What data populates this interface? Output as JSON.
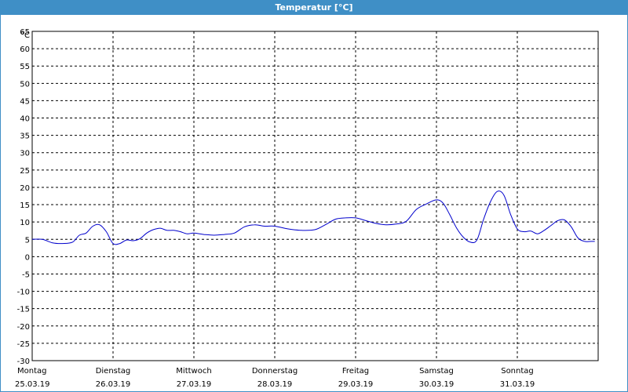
{
  "window": {
    "title": "Temperatur [°C]"
  },
  "chart_data": {
    "type": "line",
    "title": "Temperatur [°C]",
    "unit": "°C",
    "ylim": [
      -30,
      65
    ],
    "yticks": [
      65,
      60,
      55,
      50,
      45,
      40,
      35,
      30,
      25,
      20,
      15,
      10,
      5,
      0,
      -5,
      -10,
      -15,
      -20,
      -25,
      -30
    ],
    "grid": true,
    "xlim": [
      "25.03.19",
      "01.04.19"
    ],
    "days": [
      {
        "weekday": "Montag",
        "date": "25.03.19"
      },
      {
        "weekday": "Dienstag",
        "date": "26.03.19"
      },
      {
        "weekday": "Mittwoch",
        "date": "27.03.19"
      },
      {
        "weekday": "Donnerstag",
        "date": "28.03.19"
      },
      {
        "weekday": "Freitag",
        "date": "29.03.19"
      },
      {
        "weekday": "Samstag",
        "date": "30.03.19"
      },
      {
        "weekday": "Sonntag",
        "date": "31.03.19"
      }
    ],
    "line_color": "#0000cc",
    "series": [
      {
        "x": [
          "25.03.19 00:00",
          "25.03.19 03:00",
          "25.03.19 06:00",
          "25.03.19 09:00",
          "25.03.19 12:00",
          "25.03.19 14:00",
          "25.03.19 16:00",
          "25.03.19 18:00",
          "25.03.19 20:00",
          "25.03.19 22:00",
          "26.03.19 00:00",
          "26.03.19 02:00",
          "26.03.19 04:00",
          "26.03.19 06:00",
          "26.03.19 08:00",
          "26.03.19 10:00",
          "26.03.19 12:00",
          "26.03.19 14:00",
          "26.03.19 16:00",
          "26.03.19 18:00",
          "26.03.19 20:00",
          "26.03.19 22:00",
          "27.03.19 00:00",
          "27.03.19 03:00",
          "27.03.19 06:00",
          "27.03.19 09:00",
          "27.03.19 12:00",
          "27.03.19 15:00",
          "27.03.19 18:00",
          "27.03.19 21:00",
          "28.03.19 00:00",
          "28.03.19 04:00",
          "28.03.19 08:00",
          "28.03.19 12:00",
          "28.03.19 15:00",
          "28.03.19 18:00",
          "28.03.19 21:00",
          "29.03.19 00:00",
          "29.03.19 03:00",
          "29.03.19 06:00",
          "29.03.19 09:00",
          "29.03.19 12:00",
          "29.03.19 15:00",
          "29.03.19 18:00",
          "29.03.19 21:00",
          "30.03.19 00:00",
          "30.03.19 02:00",
          "30.03.19 04:00",
          "30.03.19 06:00",
          "30.03.19 08:00",
          "30.03.19 10:00",
          "30.03.19 12:00",
          "30.03.19 14:00",
          "30.03.19 16:00",
          "30.03.19 18:00",
          "30.03.19 20:00",
          "30.03.19 22:00",
          "31.03.19 00:00",
          "31.03.19 02:00",
          "31.03.19 04:00",
          "31.03.19 06:00",
          "31.03.19 08:00",
          "31.03.19 10:00",
          "31.03.19 12:00",
          "31.03.19 14:00",
          "31.03.19 16:00",
          "31.03.19 18:00",
          "31.03.19 20:00",
          "31.03.19 22:00",
          "31.03.19 23:00"
        ],
        "y": [
          5.0,
          5.0,
          4.0,
          3.8,
          4.2,
          6.2,
          6.8,
          8.8,
          9.2,
          7.2,
          3.8,
          3.8,
          4.8,
          4.6,
          5.2,
          6.8,
          7.8,
          8.2,
          7.6,
          7.6,
          7.2,
          6.6,
          6.8,
          6.4,
          6.2,
          6.4,
          6.8,
          8.6,
          9.2,
          8.8,
          8.8,
          8.0,
          7.6,
          7.8,
          9.2,
          10.8,
          11.2,
          11.2,
          10.4,
          9.6,
          9.2,
          9.4,
          10.2,
          13.6,
          15.2,
          16.4,
          15.4,
          12.0,
          8.2,
          5.6,
          4.2,
          4.8,
          10.8,
          15.8,
          18.8,
          17.8,
          12.2,
          8.0,
          7.2,
          7.4,
          6.6,
          7.6,
          9.0,
          10.4,
          10.6,
          8.6,
          5.4,
          4.4,
          4.4,
          4.4
        ]
      }
    ]
  }
}
